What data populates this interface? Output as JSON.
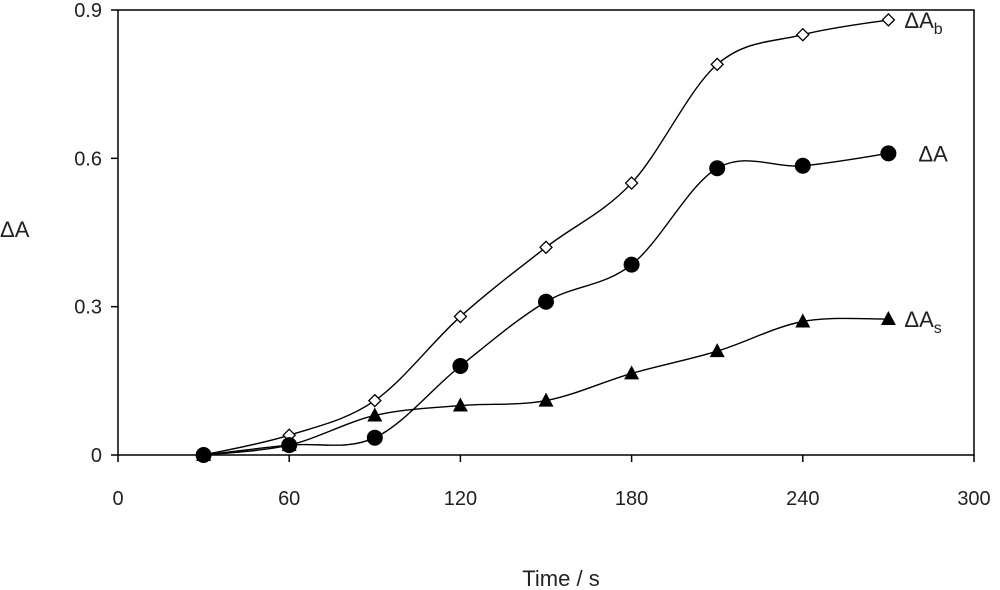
{
  "chart_data": {
    "type": "line",
    "xlabel": "Time / s",
    "ylabel": "ΔA",
    "xlim": [
      0,
      300
    ],
    "ylim": [
      0,
      0.9
    ],
    "xticks": [
      "0",
      "60",
      "120",
      "180",
      "240",
      "300"
    ],
    "yticks": [
      "0",
      "0.3",
      "0.6",
      "0.9"
    ],
    "grid": false,
    "legend": "end-of-line labels",
    "series": [
      {
        "name": "ΔAb",
        "label_main": "ΔA",
        "label_sub": "b",
        "marker": "diamond-open",
        "x": [
          30,
          60,
          90,
          120,
          150,
          180,
          210,
          240,
          270
        ],
        "y": [
          0.0,
          0.04,
          0.11,
          0.28,
          0.42,
          0.55,
          0.79,
          0.85,
          0.88
        ]
      },
      {
        "name": "ΔA",
        "label_main": "ΔA",
        "label_sub": "",
        "marker": "circle-filled",
        "x": [
          30,
          60,
          90,
          120,
          150,
          180,
          210,
          240,
          270
        ],
        "y": [
          0.0,
          0.02,
          0.035,
          0.18,
          0.31,
          0.385,
          0.58,
          0.585,
          0.61
        ]
      },
      {
        "name": "ΔAs",
        "label_main": "ΔA",
        "label_sub": "s",
        "marker": "triangle-filled",
        "x": [
          30,
          60,
          90,
          120,
          150,
          180,
          210,
          240,
          270
        ],
        "y": [
          0.0,
          0.02,
          0.08,
          0.1,
          0.11,
          0.165,
          0.21,
          0.27,
          0.275
        ]
      }
    ]
  }
}
